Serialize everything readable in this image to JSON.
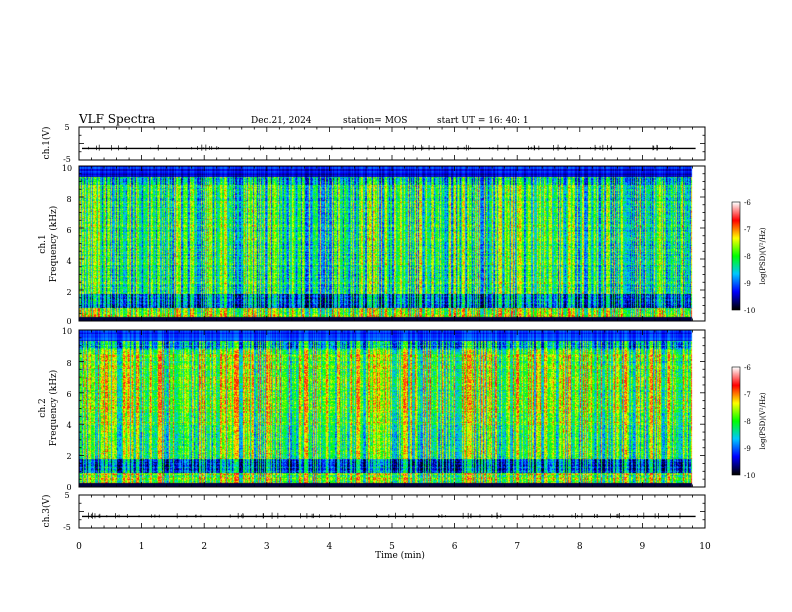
{
  "header": {
    "title": "VLF Spectra",
    "date": "Dec.21, 2024",
    "station": "station= MOS",
    "start_ut": "start  UT =  16: 40: 1"
  },
  "colors": {
    "scale": [
      "#000000",
      "#0000ff",
      "#00c8ff",
      "#00ff00",
      "#ffff00",
      "#ff0000",
      "#ffffff"
    ]
  },
  "chart_data": [
    {
      "type": "line",
      "panel": "ch1-waveform",
      "ylabel": "ch.1(V)",
      "yticks": [
        "5",
        "-5"
      ],
      "ylim": [
        -5,
        5
      ],
      "baseline": -1.5,
      "xlim": [
        0,
        9.85
      ]
    },
    {
      "type": "heatmap",
      "panel": "ch1-spectrogram",
      "ylabel_top": "ch.1",
      "ylabel": "Frequency (kHz)",
      "yticks": [
        "0",
        "2",
        "4",
        "6",
        "8",
        "10"
      ],
      "ylim": [
        0,
        10
      ],
      "xlim": [
        0,
        9.85
      ],
      "colorbar": {
        "label": "log(PSD)(V²/Hz)",
        "ticks": [
          "-6",
          "-7",
          "-8",
          "-9",
          "-10"
        ],
        "range": [
          -10,
          -6
        ]
      }
    },
    {
      "type": "heatmap",
      "panel": "ch2-spectrogram",
      "ylabel_top": "ch.2",
      "ylabel": "Frequency (kHz)",
      "yticks": [
        "0",
        "2",
        "4",
        "6",
        "8",
        "10"
      ],
      "ylim": [
        0,
        10
      ],
      "xlim": [
        0,
        9.85
      ],
      "colorbar": {
        "label": "log(PSD)(V²/Hz)",
        "ticks": [
          "-6",
          "-7",
          "-8",
          "-9",
          "-10"
        ],
        "range": [
          -10,
          -6
        ]
      }
    },
    {
      "type": "line",
      "panel": "ch3-waveform",
      "ylabel": "ch.3(V)",
      "yticks": [
        "5",
        "-5"
      ],
      "ylim": [
        -5,
        5
      ],
      "baseline": -1.5,
      "xlim": [
        0,
        9.85
      ]
    }
  ],
  "xaxis": {
    "label": "Time (min)",
    "ticks": [
      "0",
      "1",
      "2",
      "3",
      "4",
      "5",
      "6",
      "7",
      "8",
      "9",
      "10"
    ],
    "range": [
      0,
      10
    ]
  }
}
